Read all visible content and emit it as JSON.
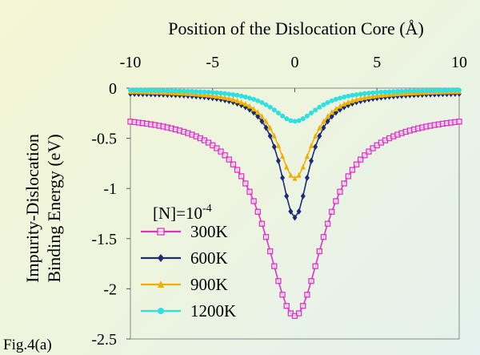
{
  "chart_data": {
    "type": "line",
    "xlabel": "Position of the Dislocation Core (Å)",
    "ylabel_lines": [
      "Impurity-Dislocation",
      "Binding Energy  (eV)"
    ],
    "xlim": [
      -10,
      10
    ],
    "ylim": [
      -2.5,
      0
    ],
    "x_ticks": [
      "-10",
      "-5",
      "0",
      "5",
      "10"
    ],
    "y_ticks": [
      "0",
      "-0.5",
      "-1",
      "-1.5",
      "-2",
      "-2.5"
    ],
    "x_axis_position": "top",
    "grid": false,
    "legend_title_base": "[N]=10",
    "legend_title_exp": "-4",
    "legend_placement": "bottom-left",
    "figure_label": "Fig.4(a)",
    "series": [
      {
        "name": "300K",
        "color": "#e030c8",
        "marker": "square",
        "min": -2.27,
        "width": 2.2,
        "edge": -0.24
      },
      {
        "name": "600K",
        "color": "#1c2a78",
        "marker": "diamond",
        "min": -1.29,
        "width": 1.1,
        "edge": -0.04
      },
      {
        "name": "900K",
        "color": "#f0b000",
        "marker": "triangle",
        "min": -0.9,
        "width": 1.3,
        "edge": -0.02
      },
      {
        "name": "1200K",
        "color": "#30e0e0",
        "marker": "circle",
        "min": -0.33,
        "width": 1.7,
        "edge": -0.01
      }
    ]
  }
}
